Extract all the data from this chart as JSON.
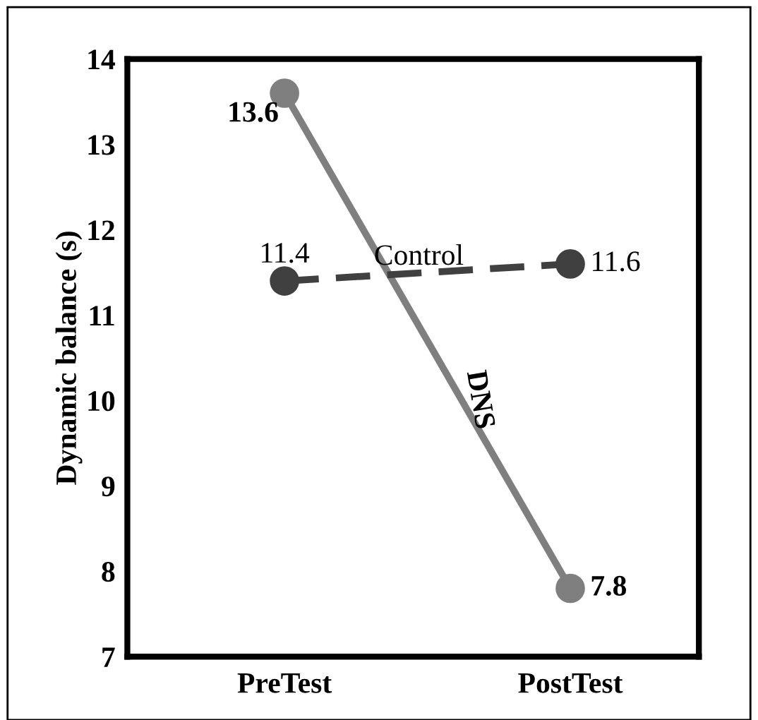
{
  "chart_data": {
    "type": "line",
    "ylabel": "Dynamic balance (s)",
    "categories": [
      "PreTest",
      "PostTest"
    ],
    "ylim": [
      7,
      14
    ],
    "yticks": [
      7,
      8,
      9,
      10,
      11,
      12,
      13,
      14
    ],
    "grid": false,
    "legend": false,
    "marker": "circle",
    "data_labels": true,
    "series": [
      {
        "name": "DNS",
        "color": "#7f7f7f",
        "values": [
          13.6,
          7.8
        ],
        "line_style": "solid"
      },
      {
        "name": "Control",
        "color": "#404040",
        "values": [
          11.4,
          11.6
        ],
        "line_style": "dashed"
      }
    ]
  }
}
